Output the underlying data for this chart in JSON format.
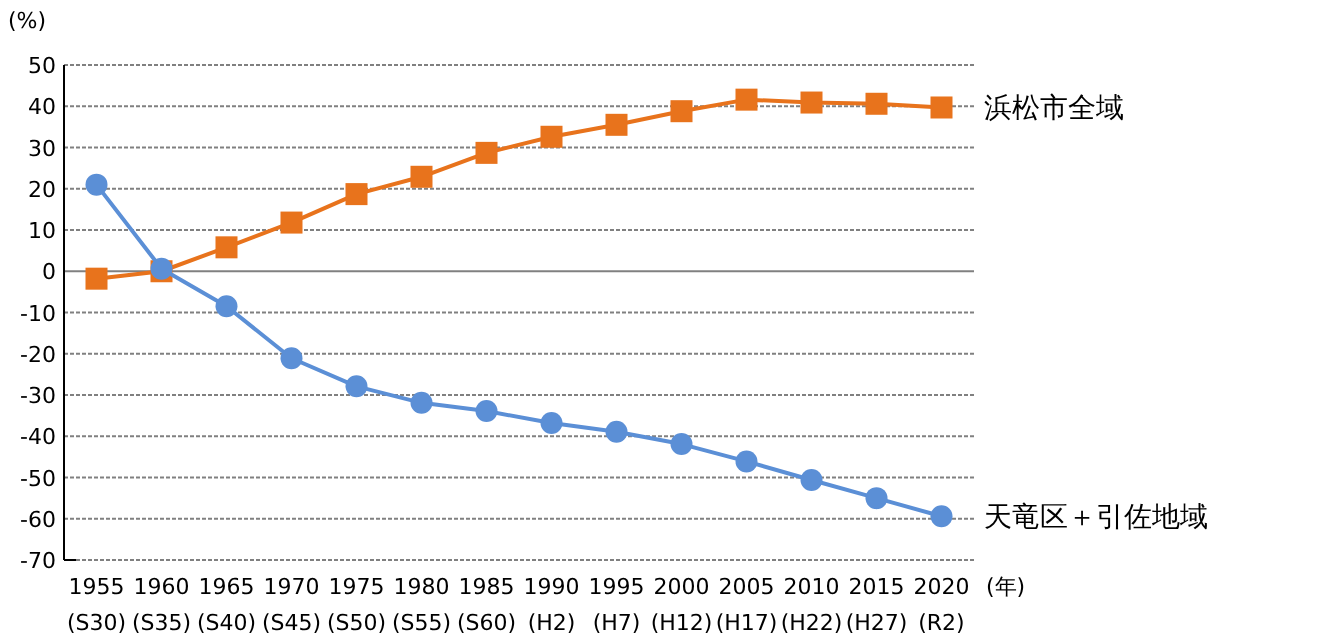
{
  "chart_data": {
    "type": "line",
    "ylabel": "(%)",
    "xlabel": "(年)",
    "categories": [
      "1955\n(S30)",
      "1960\n(S35)",
      "1965\n(S40)",
      "1970\n(S45)",
      "1975\n(S50)",
      "1980\n(S55)",
      "1985\n(S60)",
      "1990\n(H2)",
      "1995\n(H7)",
      "2000\n(H12)",
      "2005\n(H17)",
      "2010\n(H22)",
      "2015\n(H27)",
      "2020\n(R2)"
    ],
    "series": [
      {
        "name": "浜松市全域",
        "color": "#e8731c",
        "marker": "square",
        "values": [
          -1.8,
          0,
          5.8,
          11.8,
          18.7,
          22.9,
          28.7,
          32.6,
          35.5,
          38.8,
          41.6,
          40.9,
          40.6,
          39.7
        ]
      },
      {
        "name": "天竜区＋引佐地域",
        "color": "#5b8fd6",
        "marker": "circle",
        "values": [
          21,
          0.6,
          -8.5,
          -21.1,
          -27.9,
          -31.9,
          -33.9,
          -36.8,
          -38.9,
          -41.9,
          -46.1,
          -50.6,
          -55,
          -59.4
        ]
      }
    ],
    "ylim": [
      -70,
      50
    ],
    "yticks": [
      -70,
      -60,
      -50,
      -40,
      -30,
      -20,
      -10,
      0,
      10,
      20,
      30,
      40,
      50
    ],
    "grid": "y"
  }
}
